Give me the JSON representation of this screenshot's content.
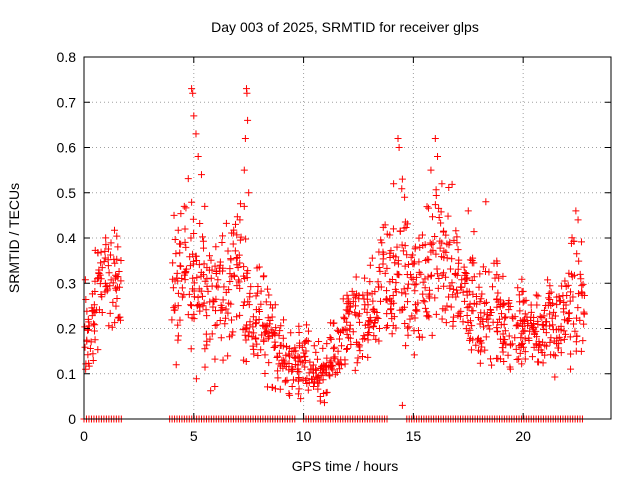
{
  "chart_data": {
    "type": "scatter",
    "title": "Day 003 of 2025, SRMTID for receiver glps",
    "xlabel": "GPS time / hours",
    "ylabel": "SRMTID / TECUs",
    "xlim": [
      0,
      24
    ],
    "ylim": [
      0,
      0.8
    ],
    "xticks": [
      0,
      5,
      10,
      15,
      20
    ],
    "yticks": [
      0,
      0.1,
      0.2,
      0.3,
      0.4,
      0.5,
      0.6,
      0.7,
      0.8
    ],
    "xtick_labels": [
      "0",
      "5",
      "10",
      "15",
      "20"
    ],
    "ytick_labels": [
      "0",
      "0.1",
      "0.2",
      "0.3",
      "0.4",
      "0.5",
      "0.6",
      "0.7",
      "0.8"
    ],
    "grid": true,
    "marker": "+",
    "color": "#ff0000",
    "zero_segments": [
      [
        0.0,
        1.7
      ],
      [
        3.9,
        9.6
      ],
      [
        10.0,
        13.8
      ],
      [
        14.7,
        22.7
      ]
    ],
    "profile": [
      [
        0.0,
        0.2,
        0.06
      ],
      [
        0.3,
        0.16,
        0.05
      ],
      [
        0.6,
        0.28,
        0.06
      ],
      [
        0.9,
        0.32,
        0.04
      ],
      [
        1.2,
        0.3,
        0.05
      ],
      [
        1.5,
        0.32,
        0.05
      ],
      [
        1.7,
        0.3,
        0.04
      ],
      [
        4.0,
        0.32,
        0.08
      ],
      [
        4.5,
        0.3,
        0.08
      ],
      [
        5.0,
        0.33,
        0.1
      ],
      [
        5.5,
        0.28,
        0.08
      ],
      [
        6.0,
        0.25,
        0.08
      ],
      [
        6.5,
        0.28,
        0.08
      ],
      [
        7.0,
        0.34,
        0.07
      ],
      [
        7.5,
        0.26,
        0.06
      ],
      [
        8.0,
        0.22,
        0.06
      ],
      [
        8.5,
        0.18,
        0.05
      ],
      [
        9.0,
        0.15,
        0.04
      ],
      [
        9.5,
        0.11,
        0.03
      ],
      [
        10.0,
        0.13,
        0.04
      ],
      [
        10.5,
        0.11,
        0.03
      ],
      [
        11.0,
        0.1,
        0.03
      ],
      [
        11.5,
        0.15,
        0.04
      ],
      [
        12.0,
        0.2,
        0.05
      ],
      [
        12.5,
        0.2,
        0.05
      ],
      [
        13.0,
        0.22,
        0.05
      ],
      [
        13.5,
        0.27,
        0.07
      ],
      [
        14.0,
        0.3,
        0.08
      ],
      [
        14.5,
        0.33,
        0.09
      ],
      [
        15.0,
        0.27,
        0.07
      ],
      [
        15.5,
        0.3,
        0.07
      ],
      [
        16.0,
        0.36,
        0.08
      ],
      [
        16.5,
        0.35,
        0.08
      ],
      [
        17.0,
        0.3,
        0.07
      ],
      [
        17.5,
        0.26,
        0.07
      ],
      [
        18.0,
        0.24,
        0.06
      ],
      [
        18.5,
        0.25,
        0.06
      ],
      [
        19.0,
        0.21,
        0.05
      ],
      [
        19.5,
        0.2,
        0.05
      ],
      [
        20.0,
        0.22,
        0.05
      ],
      [
        20.5,
        0.21,
        0.05
      ],
      [
        21.0,
        0.2,
        0.05
      ],
      [
        21.5,
        0.2,
        0.05
      ],
      [
        22.0,
        0.24,
        0.07
      ],
      [
        22.5,
        0.28,
        0.08
      ],
      [
        22.8,
        0.22,
        0.05
      ]
    ],
    "outliers": [
      [
        4.1,
        0.45
      ],
      [
        4.2,
        0.12
      ],
      [
        4.6,
        0.42
      ],
      [
        4.9,
        0.73
      ],
      [
        4.95,
        0.72
      ],
      [
        5.0,
        0.67
      ],
      [
        5.1,
        0.63
      ],
      [
        5.2,
        0.58
      ],
      [
        5.35,
        0.54
      ],
      [
        5.5,
        0.47
      ],
      [
        6.9,
        0.43
      ],
      [
        7.1,
        0.44
      ],
      [
        7.3,
        0.55
      ],
      [
        7.35,
        0.62
      ],
      [
        7.4,
        0.73
      ],
      [
        7.42,
        0.72
      ],
      [
        7.45,
        0.66
      ],
      [
        7.5,
        0.5
      ],
      [
        7.3,
        0.47
      ],
      [
        14.1,
        0.52
      ],
      [
        14.3,
        0.62
      ],
      [
        14.35,
        0.6
      ],
      [
        14.5,
        0.53
      ],
      [
        14.6,
        0.49
      ],
      [
        14.5,
        0.03
      ],
      [
        15.8,
        0.55
      ],
      [
        16.0,
        0.62
      ],
      [
        16.1,
        0.58
      ],
      [
        16.3,
        0.52
      ],
      [
        17.5,
        0.46
      ],
      [
        18.3,
        0.48
      ],
      [
        22.4,
        0.46
      ],
      [
        22.5,
        0.44
      ]
    ]
  }
}
